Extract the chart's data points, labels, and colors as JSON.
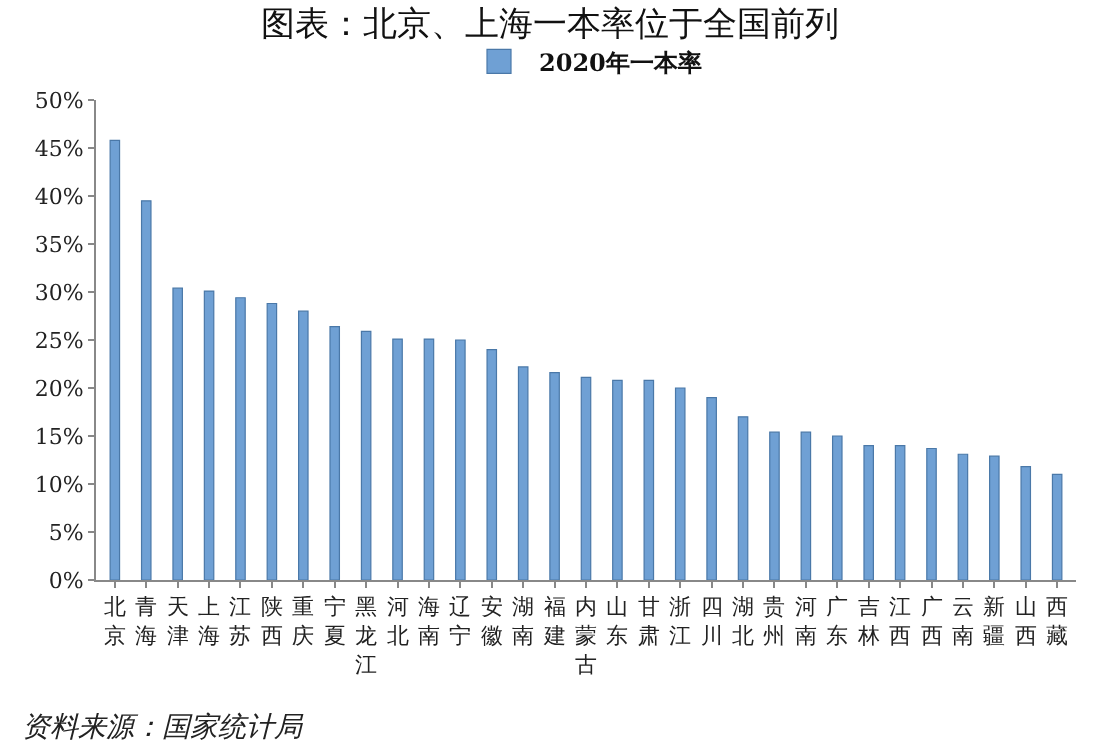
{
  "chart_data": {
    "type": "bar",
    "title": "图表：北京、上海一本率位于全国前列",
    "categories": [
      "北京",
      "青海",
      "天津",
      "上海",
      "江苏",
      "陕西",
      "重庆",
      "宁夏",
      "黑龙江",
      "河北",
      "海南",
      "辽宁",
      "安徽",
      "湖南",
      "福建",
      "内蒙古",
      "山东",
      "甘肃",
      "浙江",
      "四川",
      "湖北",
      "贵州",
      "河南",
      "广东",
      "吉林",
      "江西",
      "广西",
      "云南",
      "新疆",
      "山西",
      "西藏"
    ],
    "series": [
      {
        "name": "2020年一本率",
        "color": "#6fa0d4",
        "values": [
          45.8,
          39.5,
          30.4,
          30.1,
          29.4,
          28.8,
          28.0,
          26.4,
          25.9,
          25.1,
          25.1,
          25.0,
          24.0,
          22.2,
          21.6,
          21.1,
          20.8,
          20.8,
          20.0,
          19.0,
          17.0,
          15.4,
          15.4,
          15.0,
          14.0,
          14.0,
          13.7,
          13.1,
          12.9,
          11.8,
          11.0
        ]
      }
    ],
    "ylim": [
      0,
      50
    ],
    "yticks": [
      {
        "value": 0,
        "label": "0%"
      },
      {
        "value": 5,
        "label": "5%"
      },
      {
        "value": 10,
        "label": "10%"
      },
      {
        "value": 15,
        "label": "15%"
      },
      {
        "value": 20,
        "label": "20%"
      },
      {
        "value": 25,
        "label": "25%"
      },
      {
        "value": 30,
        "label": "30%"
      },
      {
        "value": 35,
        "label": "35%"
      },
      {
        "value": 40,
        "label": "40%"
      },
      {
        "value": 45,
        "label": "45%"
      },
      {
        "value": 50,
        "label": "50%"
      }
    ],
    "grid": false,
    "legend": "top",
    "annotations": [
      "资料来源：国家统计局"
    ]
  }
}
